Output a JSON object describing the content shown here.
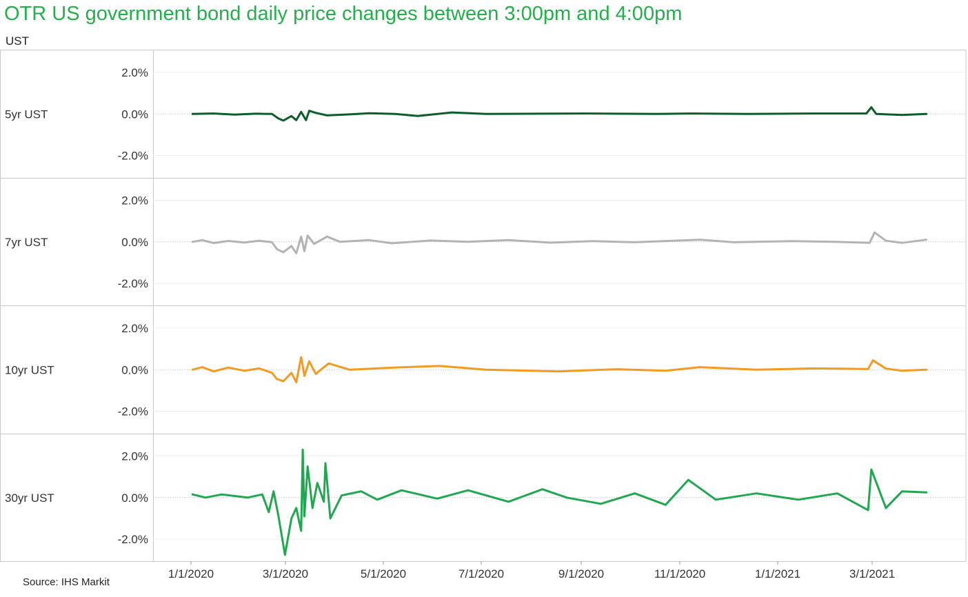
{
  "title": "OTR US government bond daily price changes between 3:00pm and 4:00pm",
  "column_header": "UST",
  "source": "Source: IHS Markit",
  "chart_data": {
    "type": "line",
    "x_range": [
      "2020-01-01",
      "2021-03-31"
    ],
    "x_ticks": [
      "1/1/2020",
      "3/1/2020",
      "5/1/2020",
      "7/1/2020",
      "9/1/2020",
      "11/1/2020",
      "1/1/2021",
      "3/1/2021"
    ],
    "y_ticks": [
      "2.0%",
      "0.0%",
      "-2.0%"
    ],
    "ylim": [
      -2.7,
      2.7
    ],
    "grid": "horizontal dotted zero line",
    "panels": [
      {
        "name": "5yr UST",
        "color": "#0b5e2a",
        "points": [
          [
            "2020-01-02",
            0.0
          ],
          [
            "2020-01-15",
            0.02
          ],
          [
            "2020-01-28",
            -0.03
          ],
          [
            "2020-02-10",
            0.01
          ],
          [
            "2020-02-20",
            0.0
          ],
          [
            "2020-02-24",
            -0.22
          ],
          [
            "2020-02-27",
            -0.32
          ],
          [
            "2020-03-03",
            -0.1
          ],
          [
            "2020-03-06",
            -0.3
          ],
          [
            "2020-03-09",
            0.1
          ],
          [
            "2020-03-12",
            -0.3
          ],
          [
            "2020-03-14",
            0.15
          ],
          [
            "2020-03-18",
            0.05
          ],
          [
            "2020-03-25",
            -0.07
          ],
          [
            "2020-04-08",
            -0.02
          ],
          [
            "2020-04-20",
            0.03
          ],
          [
            "2020-05-06",
            0.0
          ],
          [
            "2020-05-20",
            -0.1
          ],
          [
            "2020-06-10",
            0.07
          ],
          [
            "2020-07-01",
            0.0
          ],
          [
            "2020-08-05",
            0.01
          ],
          [
            "2020-09-01",
            0.02
          ],
          [
            "2020-10-15",
            0.0
          ],
          [
            "2020-11-05",
            0.02
          ],
          [
            "2020-12-10",
            0.0
          ],
          [
            "2021-01-20",
            0.02
          ],
          [
            "2021-02-21",
            0.02
          ],
          [
            "2021-02-24",
            0.32
          ],
          [
            "2021-02-27",
            0.0
          ],
          [
            "2021-03-15",
            -0.05
          ],
          [
            "2021-03-30",
            0.0
          ]
        ]
      },
      {
        "name": "7yr UST",
        "color": "#b3b3b3",
        "points": [
          [
            "2020-01-02",
            0.0
          ],
          [
            "2020-01-08",
            0.08
          ],
          [
            "2020-01-15",
            -0.06
          ],
          [
            "2020-01-24",
            0.04
          ],
          [
            "2020-02-03",
            -0.03
          ],
          [
            "2020-02-12",
            0.05
          ],
          [
            "2020-02-20",
            -0.02
          ],
          [
            "2020-02-23",
            -0.35
          ],
          [
            "2020-02-27",
            -0.5
          ],
          [
            "2020-03-03",
            -0.2
          ],
          [
            "2020-03-06",
            -0.55
          ],
          [
            "2020-03-09",
            0.25
          ],
          [
            "2020-03-11",
            -0.45
          ],
          [
            "2020-03-13",
            0.3
          ],
          [
            "2020-03-17",
            -0.1
          ],
          [
            "2020-03-25",
            0.25
          ],
          [
            "2020-04-02",
            0.0
          ],
          [
            "2020-04-20",
            0.08
          ],
          [
            "2020-05-04",
            -0.07
          ],
          [
            "2020-05-28",
            0.06
          ],
          [
            "2020-06-20",
            0.0
          ],
          [
            "2020-07-15",
            0.08
          ],
          [
            "2020-08-10",
            -0.04
          ],
          [
            "2020-09-05",
            0.03
          ],
          [
            "2020-10-01",
            -0.02
          ],
          [
            "2020-11-10",
            0.1
          ],
          [
            "2020-12-01",
            -0.02
          ],
          [
            "2021-01-05",
            0.03
          ],
          [
            "2021-02-01",
            0.0
          ],
          [
            "2021-02-23",
            -0.05
          ],
          [
            "2021-02-26",
            0.45
          ],
          [
            "2021-03-05",
            0.05
          ],
          [
            "2021-03-15",
            -0.05
          ],
          [
            "2021-03-30",
            0.1
          ]
        ]
      },
      {
        "name": "10yr UST",
        "color": "#f39a1f",
        "points": [
          [
            "2020-01-02",
            0.0
          ],
          [
            "2020-01-08",
            0.12
          ],
          [
            "2020-01-15",
            -0.08
          ],
          [
            "2020-01-24",
            0.1
          ],
          [
            "2020-02-03",
            -0.05
          ],
          [
            "2020-02-12",
            0.06
          ],
          [
            "2020-02-20",
            -0.15
          ],
          [
            "2020-02-23",
            -0.45
          ],
          [
            "2020-02-27",
            -0.55
          ],
          [
            "2020-03-03",
            -0.15
          ],
          [
            "2020-03-06",
            -0.6
          ],
          [
            "2020-03-09",
            0.6
          ],
          [
            "2020-03-11",
            -0.3
          ],
          [
            "2020-03-14",
            0.4
          ],
          [
            "2020-03-18",
            -0.2
          ],
          [
            "2020-03-26",
            0.3
          ],
          [
            "2020-04-08",
            0.0
          ],
          [
            "2020-05-05",
            0.1
          ],
          [
            "2020-06-02",
            0.18
          ],
          [
            "2020-07-01",
            0.0
          ],
          [
            "2020-08-15",
            -0.08
          ],
          [
            "2020-09-20",
            0.02
          ],
          [
            "2020-10-20",
            -0.05
          ],
          [
            "2020-11-10",
            0.12
          ],
          [
            "2020-12-15",
            0.0
          ],
          [
            "2021-01-20",
            0.06
          ],
          [
            "2021-02-22",
            0.03
          ],
          [
            "2021-02-25",
            0.45
          ],
          [
            "2021-03-05",
            0.05
          ],
          [
            "2021-03-15",
            -0.05
          ],
          [
            "2021-03-30",
            0.0
          ]
        ]
      },
      {
        "name": "30yr UST",
        "color": "#1fa84f",
        "points": [
          [
            "2020-01-02",
            0.15
          ],
          [
            "2020-01-10",
            0.0
          ],
          [
            "2020-01-20",
            0.15
          ],
          [
            "2020-02-05",
            0.0
          ],
          [
            "2020-02-14",
            0.15
          ],
          [
            "2020-02-18",
            -0.7
          ],
          [
            "2020-02-21",
            0.3
          ],
          [
            "2020-02-24",
            -0.9
          ],
          [
            "2020-02-28",
            -2.75
          ],
          [
            "2020-03-03",
            -1.0
          ],
          [
            "2020-03-06",
            -0.5
          ],
          [
            "2020-03-09",
            -1.6
          ],
          [
            "2020-03-10",
            2.3
          ],
          [
            "2020-03-11",
            -0.9
          ],
          [
            "2020-03-13",
            1.5
          ],
          [
            "2020-03-16",
            -0.5
          ],
          [
            "2020-03-19",
            0.7
          ],
          [
            "2020-03-23",
            -0.2
          ],
          [
            "2020-03-24",
            1.65
          ],
          [
            "2020-03-27",
            -1.0
          ],
          [
            "2020-04-03",
            0.1
          ],
          [
            "2020-04-15",
            0.3
          ],
          [
            "2020-04-25",
            -0.1
          ],
          [
            "2020-05-10",
            0.35
          ],
          [
            "2020-06-01",
            -0.05
          ],
          [
            "2020-06-20",
            0.35
          ],
          [
            "2020-07-15",
            -0.2
          ],
          [
            "2020-08-05",
            0.4
          ],
          [
            "2020-08-20",
            0.0
          ],
          [
            "2020-09-10",
            -0.3
          ],
          [
            "2020-10-01",
            0.2
          ],
          [
            "2020-10-20",
            -0.35
          ],
          [
            "2020-11-03",
            0.85
          ],
          [
            "2020-11-20",
            -0.1
          ],
          [
            "2020-12-15",
            0.2
          ],
          [
            "2021-01-10",
            -0.1
          ],
          [
            "2021-02-03",
            0.2
          ],
          [
            "2021-02-22",
            -0.6
          ],
          [
            "2021-02-24",
            1.35
          ],
          [
            "2021-03-05",
            -0.5
          ],
          [
            "2021-03-15",
            0.3
          ],
          [
            "2021-03-30",
            0.25
          ]
        ]
      }
    ]
  }
}
